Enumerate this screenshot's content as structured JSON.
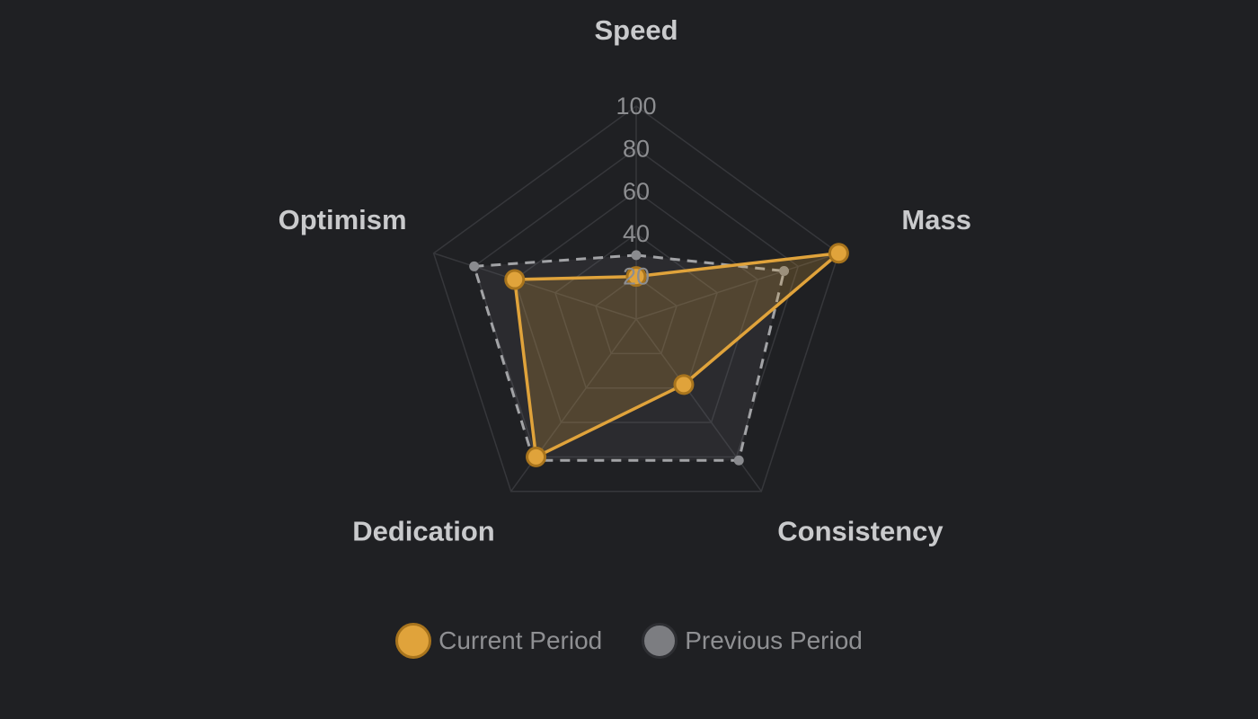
{
  "chart_data": {
    "type": "radar",
    "axes": [
      "Speed",
      "Mass",
      "Consistency",
      "Dedication",
      "Optimism"
    ],
    "r_range": [
      0,
      100
    ],
    "ticks": [
      "20",
      "40",
      "60",
      "80",
      "100"
    ],
    "grid": true,
    "legend_position": "bottom",
    "series": [
      {
        "name": "Current Period",
        "values": [
          20,
          100,
          38,
          80,
          60
        ],
        "color": "#e0a33b"
      },
      {
        "name": "Previous Period",
        "values": [
          30,
          73,
          82,
          82,
          80
        ],
        "color": "#a2a3a6"
      }
    ]
  }
}
